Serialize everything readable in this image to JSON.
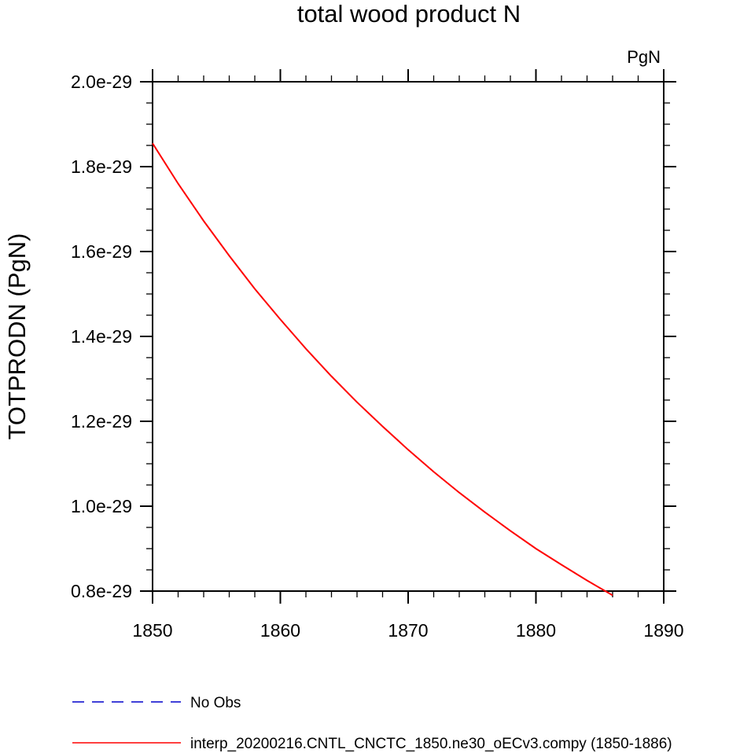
{
  "chart_data": {
    "type": "line",
    "title": "total wood product N",
    "units_label": "PgN",
    "ylabel": "TOTPRODN  (PgN)",
    "xlabel": "",
    "xlim": [
      1850,
      1890
    ],
    "ylim": [
      8e-30,
      2e-29
    ],
    "x_ticks": [
      1850,
      1860,
      1870,
      1880,
      1890
    ],
    "x_tick_labels": [
      "1850",
      "1860",
      "1870",
      "1880",
      "1890"
    ],
    "y_ticks": [
      8e-30,
      1e-29,
      1.2e-29,
      1.4e-29,
      1.6e-29,
      1.8e-29,
      2e-29
    ],
    "y_tick_labels": [
      "0.8e-29",
      "1.0e-29",
      "1.2e-29",
      "1.4e-29",
      "1.6e-29",
      "1.8e-29",
      "2.0e-29"
    ],
    "grid": false,
    "legend_position": "bottom",
    "series": [
      {
        "name": "No Obs",
        "color": "#0000cc",
        "style": "dashed",
        "x": [],
        "y": []
      },
      {
        "name": "interp_20200216.CNTL_CNCTC_1850.ne30_oECv3.compy (1850-1886)",
        "color": "#ff0000",
        "style": "solid",
        "x": [
          1850,
          1852,
          1854,
          1856,
          1858,
          1860,
          1862,
          1864,
          1866,
          1868,
          1870,
          1872,
          1874,
          1876,
          1878,
          1880,
          1882,
          1884,
          1886
        ],
        "y": [
          1.855e-29,
          1.76e-29,
          1.672e-29,
          1.59e-29,
          1.512e-29,
          1.44e-29,
          1.371e-29,
          1.306e-29,
          1.245e-29,
          1.188e-29,
          1.133e-29,
          1.081e-29,
          1.032e-29,
          9.86e-30,
          9.42e-30,
          9e-30,
          8.62e-30,
          8.25e-30,
          7.9e-30
        ]
      }
    ]
  }
}
